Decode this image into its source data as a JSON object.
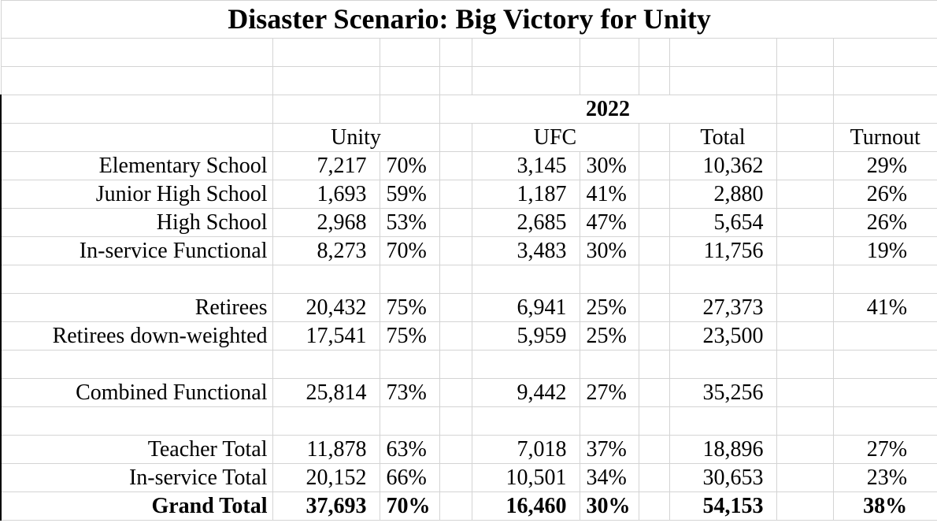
{
  "title": "Disaster Scenario: Big Victory for Unity",
  "header": {
    "year": "2022",
    "unity": "Unity",
    "ufc": "UFC",
    "total": "Total",
    "turnout": "Turnout"
  },
  "groups": [
    [
      {
        "label": "Elementary School",
        "unity": "7,217",
        "unity_pct": "70%",
        "ufc": "3,145",
        "ufc_pct": "30%",
        "total": "10,362",
        "turnout": "29%"
      },
      {
        "label": "Junior High School",
        "unity": "1,693",
        "unity_pct": "59%",
        "ufc": "1,187",
        "ufc_pct": "41%",
        "total": "2,880",
        "turnout": "26%"
      },
      {
        "label": "High School",
        "unity": "2,968",
        "unity_pct": "53%",
        "ufc": "2,685",
        "ufc_pct": "47%",
        "total": "5,654",
        "turnout": "26%"
      },
      {
        "label": "In-service Functional",
        "unity": "8,273",
        "unity_pct": "70%",
        "ufc": "3,483",
        "ufc_pct": "30%",
        "total": "11,756",
        "turnout": "19%"
      }
    ],
    [
      {
        "label": "Retirees",
        "unity": "20,432",
        "unity_pct": "75%",
        "ufc": "6,941",
        "ufc_pct": "25%",
        "total": "27,373",
        "turnout": "41%"
      },
      {
        "label": "Retirees down-weighted",
        "unity": "17,541",
        "unity_pct": "75%",
        "ufc": "5,959",
        "ufc_pct": "25%",
        "total": "23,500"
      }
    ],
    [
      {
        "label": "Combined Functional",
        "unity": "25,814",
        "unity_pct": "73%",
        "ufc": "9,442",
        "ufc_pct": "27%",
        "total": "35,256"
      }
    ],
    [
      {
        "label": "Teacher Total",
        "unity": "11,878",
        "unity_pct": "63%",
        "ufc": "7,018",
        "ufc_pct": "37%",
        "total": "18,896",
        "turnout": "27%"
      },
      {
        "label": "In-service Total",
        "unity": "20,152",
        "unity_pct": "66%",
        "ufc": "10,501",
        "ufc_pct": "34%",
        "total": "30,653",
        "turnout": "23%"
      },
      {
        "label": "Grand Total",
        "unity": "37,693",
        "unity_pct": "70%",
        "ufc": "16,460",
        "ufc_pct": "30%",
        "total": "54,153",
        "turnout": "38%"
      }
    ]
  ]
}
